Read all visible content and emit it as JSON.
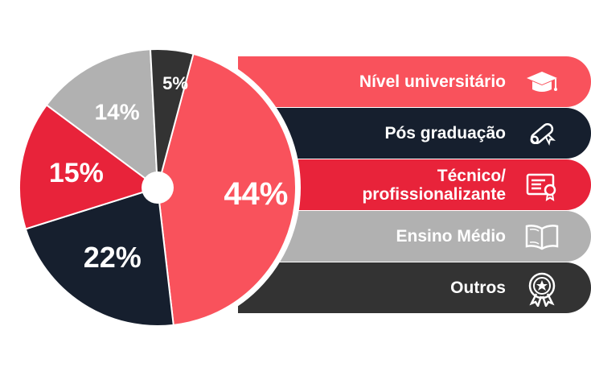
{
  "chart_data": {
    "type": "pie",
    "title": "",
    "slices": [
      {
        "label": "Nível universitário",
        "value": 44,
        "display": "44%",
        "color": "#f9525c"
      },
      {
        "label": "Pós graduação",
        "value": 22,
        "display": "22%",
        "color": "#161f2e"
      },
      {
        "label": "Técnico/\nprofissionalizante",
        "value": 15,
        "display": "15%",
        "color": "#e8233a"
      },
      {
        "label": "Ensino Médio",
        "value": 14,
        "display": "14%",
        "color": "#b1b1b1"
      },
      {
        "label": "Outros",
        "value": 5,
        "display": "5%",
        "color": "#333333"
      }
    ],
    "legend_position": "right"
  },
  "legend": [
    {
      "label": "Nível universitário",
      "color": "#f9525c",
      "icon": "graduation-cap-icon"
    },
    {
      "label": "Pós graduação",
      "color": "#161f2e",
      "icon": "diploma-scroll-icon"
    },
    {
      "label": "Técnico/\nprofissionalizante",
      "color": "#e8233a",
      "icon": "certificate-icon"
    },
    {
      "label": "Ensino Médio",
      "color": "#b1b1b1",
      "icon": "open-book-icon"
    },
    {
      "label": "Outros",
      "color": "#333333",
      "icon": "award-badge-icon"
    }
  ]
}
